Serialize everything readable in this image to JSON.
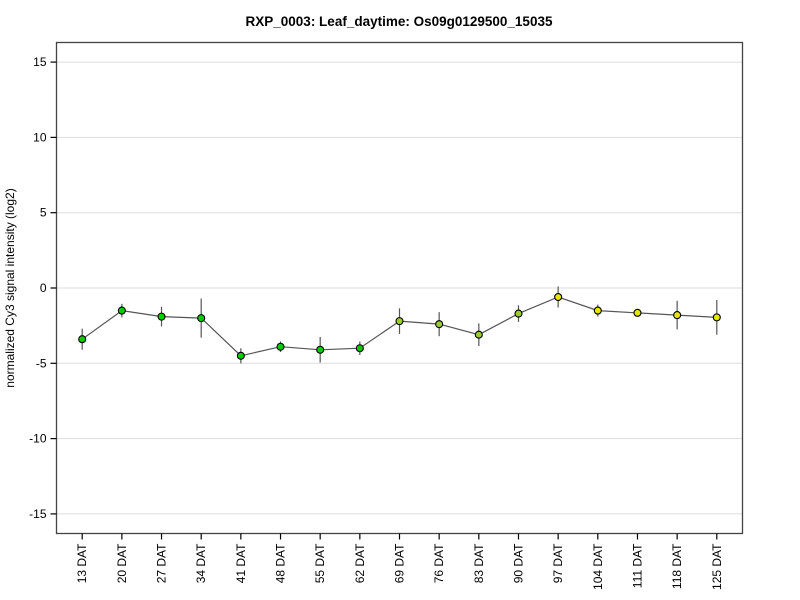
{
  "chart_data": {
    "type": "line",
    "title": "RXP_0003: Leaf_daytime: Os09g0129500_15035",
    "xlabel": "",
    "ylabel": "normalized Cy3 signal intensity (log2)",
    "x_unit": "DAT",
    "categories": [
      "13 DAT",
      "20 DAT",
      "27 DAT",
      "34 DAT",
      "41 DAT",
      "48 DAT",
      "55 DAT",
      "62 DAT",
      "69 DAT",
      "76 DAT",
      "83 DAT",
      "90 DAT",
      "97 DAT",
      "104 DAT",
      "111 DAT",
      "118 DAT",
      "125 DAT"
    ],
    "series": [
      {
        "name": "Os09g0129500_15035",
        "values": [
          -3.4,
          -1.5,
          -1.9,
          -2.0,
          -4.5,
          -3.9,
          -4.1,
          -4.0,
          -2.2,
          -2.4,
          -3.1,
          -1.7,
          -0.6,
          -1.5,
          -1.65,
          -1.8,
          -1.95
        ],
        "errors": [
          0.7,
          0.45,
          0.65,
          1.3,
          0.5,
          0.35,
          0.85,
          0.45,
          0.85,
          0.8,
          0.75,
          0.55,
          0.7,
          0.4,
          0.2,
          0.95,
          1.15
        ],
        "point_colors": [
          "#00cc00",
          "#00cc00",
          "#00cc00",
          "#00cc00",
          "#00cc00",
          "#00cc00",
          "#00cc00",
          "#00cc00",
          "#9acd32",
          "#9acd32",
          "#9acd32",
          "#9acd32",
          "#e6e600",
          "#e6e600",
          "#e6e600",
          "#e6e600",
          "#e6e600"
        ]
      }
    ],
    "yticks": [
      -15,
      -10,
      -5,
      0,
      5,
      10,
      15
    ],
    "ylim": [
      -16.3,
      16.3
    ],
    "grid": "horizontal",
    "legend_position": "none",
    "marker": "circle-black-outline",
    "error_bar_style": "vertical-line-no-caps",
    "colors": {
      "background": "#ffffff",
      "axis": "#000000",
      "box": "#444444",
      "grid": "#dddddd",
      "line": "#555555",
      "error_bar": "#555555",
      "marker_outline": "#000000"
    }
  }
}
